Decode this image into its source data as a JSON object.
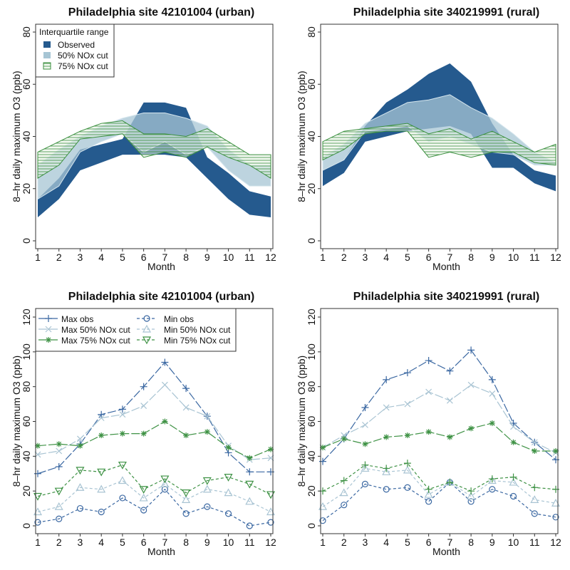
{
  "colors": {
    "observed": "#255a8e",
    "nox50": "#a7c5d4",
    "nox75": "#3a8f3e",
    "maxobs": "#3b68a2",
    "max50": "#a9c4d3",
    "max75": "#3f9245"
  },
  "chart_data": [
    {
      "type": "area",
      "title": "Philadelphia site 42101004 (urban)",
      "xlabel": "Month",
      "ylabel": "8–hr daily maximum O3 (ppb)",
      "ylim": [
        0,
        80
      ],
      "yticks": [
        "0",
        "20",
        "40",
        "60",
        "80"
      ],
      "xticks": [
        "1",
        "2",
        "3",
        "4",
        "5",
        "6",
        "7",
        "8",
        "9",
        "10",
        "11",
        "12"
      ],
      "legend": {
        "title": "Interquartile range",
        "placement": "top-left",
        "entries": [
          "Observed",
          "50% NOx cut",
          "75% NOx cut"
        ]
      },
      "series": [
        {
          "name": "Observed",
          "low": [
            9,
            16,
            27,
            30,
            33,
            33,
            33,
            32,
            24,
            16,
            10,
            9
          ],
          "high": [
            16,
            24,
            35,
            37,
            39,
            53,
            53,
            51,
            32,
            26,
            19,
            17
          ]
        },
        {
          "name": "50% NOx cut",
          "low": [
            16,
            21,
            34,
            38,
            41,
            34,
            38,
            33,
            36,
            27,
            21,
            21
          ],
          "high": [
            29,
            35,
            40,
            44,
            47,
            49,
            49,
            47,
            44,
            35,
            29,
            29
          ]
        },
        {
          "name": "75% NOx cut",
          "low": [
            24,
            29,
            39,
            40,
            41,
            32,
            34,
            32,
            36,
            32,
            29,
            24
          ],
          "high": [
            34,
            38,
            42,
            45,
            46,
            41,
            41,
            40,
            43,
            38,
            33,
            33
          ]
        }
      ]
    },
    {
      "type": "area",
      "title": "Philadelphia site 340219991 (rural)",
      "xlabel": "Month",
      "ylabel": "8–hr daily maximum O3 (ppb)",
      "ylim": [
        0,
        80
      ],
      "yticks": [
        "0",
        "20",
        "40",
        "60",
        "80"
      ],
      "xticks": [
        "1",
        "2",
        "3",
        "4",
        "5",
        "6",
        "7",
        "8",
        "9",
        "10",
        "11",
        "12"
      ],
      "series": [
        {
          "name": "Observed",
          "low": [
            21,
            26,
            38,
            40,
            42,
            43,
            44,
            41,
            28,
            28,
            22,
            19
          ],
          "high": [
            27,
            31,
            44,
            53,
            58,
            64,
            68,
            61,
            45,
            33,
            27,
            25
          ]
        },
        {
          "name": "50% NOx cut",
          "low": [
            27,
            31,
            42,
            43,
            44,
            38,
            40,
            37,
            34,
            33,
            29,
            29
          ],
          "high": [
            32,
            37,
            45,
            49,
            53,
            54,
            56,
            51,
            47,
            41,
            34,
            30
          ]
        },
        {
          "name": "75% NOx cut",
          "low": [
            31,
            35,
            41,
            42,
            42,
            32,
            34,
            32,
            34,
            34,
            30,
            29
          ],
          "high": [
            38,
            42,
            43,
            44,
            45,
            41,
            43,
            39,
            42,
            38,
            34,
            37
          ]
        }
      ]
    },
    {
      "type": "line",
      "title": "Philadelphia site 42101004 (urban)",
      "xlabel": "Month",
      "ylabel": "8–hr daily maximum O3 (ppb)",
      "ylim": [
        0,
        120
      ],
      "yticks": [
        "0",
        "20",
        "40",
        "60",
        "80",
        "100",
        "120"
      ],
      "xticks": [
        "1",
        "2",
        "3",
        "4",
        "5",
        "6",
        "7",
        "8",
        "9",
        "10",
        "11",
        "12"
      ],
      "legend": {
        "placement": "top-left",
        "entries": [
          "Max obs",
          "Max 50% NOx cut",
          "Max 75% NOx cut",
          "Min obs",
          "Min 50% NOx cut",
          "Min 75% NOx cut"
        ]
      },
      "series": [
        {
          "name": "Max obs",
          "marker": "plus",
          "values": [
            30,
            34,
            47,
            64,
            67,
            80,
            94,
            79,
            63,
            42,
            31,
            31
          ]
        },
        {
          "name": "Max 50% NOx cut",
          "marker": "x",
          "values": [
            41,
            43,
            50,
            62,
            64,
            69,
            81,
            68,
            63,
            46,
            38,
            39
          ]
        },
        {
          "name": "Max 75% NOx cut",
          "marker": "star",
          "values": [
            46,
            47,
            46,
            52,
            53,
            53,
            60,
            52,
            54,
            45,
            39,
            44
          ]
        },
        {
          "name": "Min obs",
          "marker": "circle",
          "values": [
            2,
            4,
            10,
            8,
            16,
            9,
            21,
            7,
            11,
            7,
            0,
            2
          ]
        },
        {
          "name": "Min 50% NOx cut",
          "marker": "tri-up",
          "values": [
            8,
            11,
            22,
            21,
            26,
            16,
            24,
            15,
            21,
            19,
            14,
            8
          ]
        },
        {
          "name": "Min 75% NOx cut",
          "marker": "tri-down",
          "values": [
            17,
            20,
            32,
            31,
            35,
            21,
            27,
            19,
            26,
            28,
            24,
            18
          ]
        }
      ]
    },
    {
      "type": "line",
      "title": "Philadelphia site 340219991 (rural)",
      "xlabel": "Month",
      "ylabel": "8–hr daily maximum O3 (ppb)",
      "ylim": [
        0,
        120
      ],
      "yticks": [
        "0",
        "20",
        "40",
        "60",
        "80",
        "100",
        "120"
      ],
      "xticks": [
        "1",
        "2",
        "3",
        "4",
        "5",
        "6",
        "7",
        "8",
        "9",
        "10",
        "11",
        "12"
      ],
      "series": [
        {
          "name": "Max obs",
          "marker": "plus",
          "values": [
            37,
            50,
            68,
            84,
            88,
            95,
            89,
            101,
            84,
            59,
            48,
            38
          ]
        },
        {
          "name": "Max 50% NOx cut",
          "marker": "x",
          "values": [
            45,
            52,
            58,
            68,
            70,
            77,
            72,
            81,
            76,
            57,
            48,
            42
          ]
        },
        {
          "name": "Max 75% NOx cut",
          "marker": "star",
          "values": [
            45,
            50,
            47,
            51,
            52,
            54,
            51,
            56,
            59,
            48,
            43,
            43
          ]
        },
        {
          "name": "Min obs",
          "marker": "circle",
          "values": [
            3,
            12,
            24,
            21,
            22,
            14,
            25,
            14,
            21,
            17,
            7,
            5
          ]
        },
        {
          "name": "Min 50% NOx cut",
          "marker": "tri-up",
          "values": [
            11,
            19,
            33,
            31,
            32,
            18,
            25,
            17,
            26,
            25,
            15,
            13
          ]
        },
        {
          "name": "Min 75% NOx cut",
          "marker": "plus",
          "values": [
            20,
            26,
            35,
            33,
            36,
            21,
            25,
            20,
            27,
            28,
            22,
            21
          ]
        }
      ]
    }
  ]
}
